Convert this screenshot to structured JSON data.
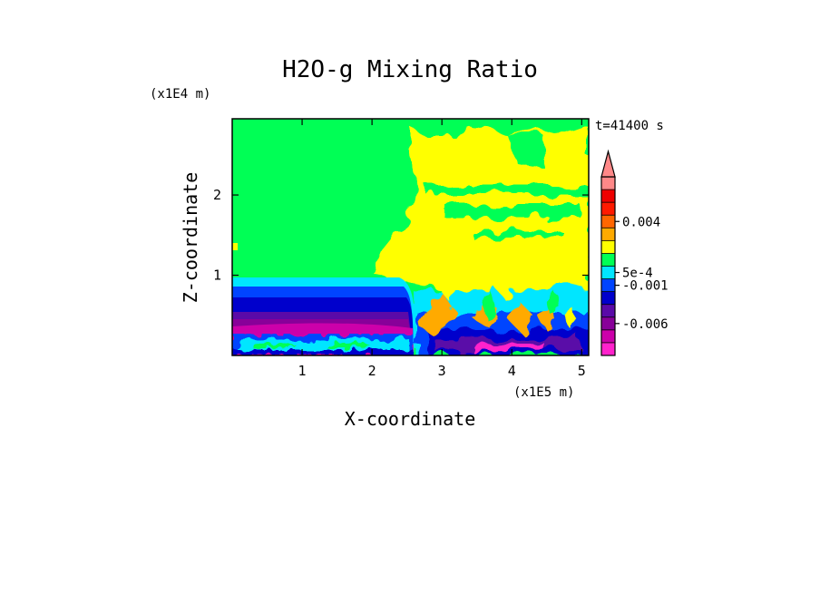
{
  "chart_data": {
    "type": "heatmap",
    "title": "H2O-g Mixing Ratio",
    "xlabel": "X-coordinate",
    "ylabel": "Z-coordinate",
    "x_unit": "(x1E5 m)",
    "y_unit": "(x1E4 m)",
    "time_label": "t=41400 s",
    "xlim": [
      0,
      5.1
    ],
    "ylim": [
      0,
      2.95
    ],
    "x_ticks": [
      1,
      2,
      3,
      4,
      5
    ],
    "y_ticks": [
      1,
      2
    ],
    "x_tick_labels": [
      "1",
      "2",
      "3",
      "4",
      "5"
    ],
    "y_tick_labels": [
      "1",
      "2"
    ],
    "colorbar": {
      "colors": [
        "#ff22cc",
        "#cc00aa",
        "#880099",
        "#5a0aa8",
        "#0000cc",
        "#0044ff",
        "#00e6ff",
        "#00ff55",
        "#ffff00",
        "#ffaa00",
        "#ff6600",
        "#ff1a00",
        "#ee0000",
        "#ff8888"
      ],
      "tick_labels": [
        "-0.006",
        "-0.001",
        "5e-4",
        "0.004"
      ],
      "tick_levels": [
        2.5,
        5.5,
        6.5,
        10.5
      ],
      "extend": "max"
    }
  }
}
